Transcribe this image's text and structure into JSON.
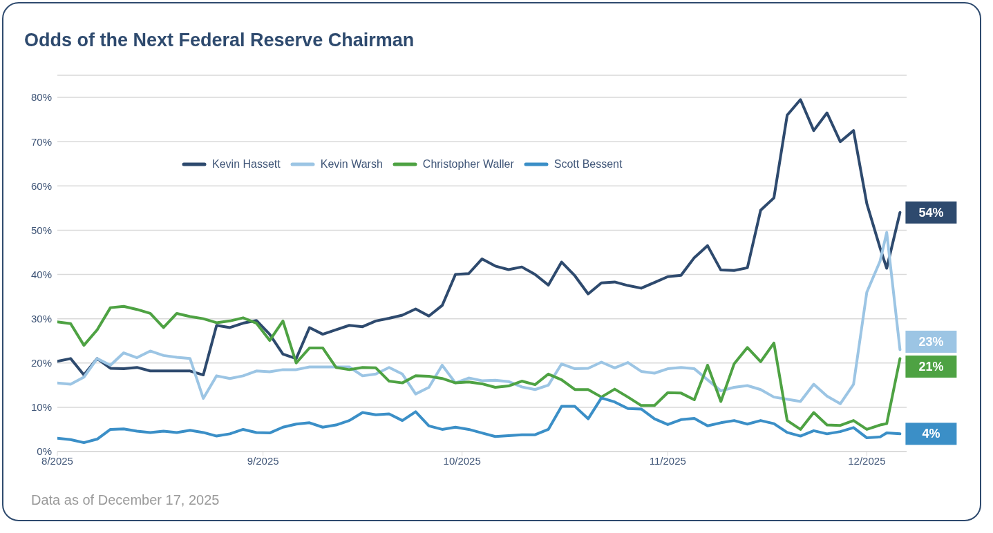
{
  "chart_data": {
    "type": "line",
    "title": "Odds of the Next Federal Reserve Chairman",
    "x": [
      "2025-08-01",
      "2025-08-03",
      "2025-08-05",
      "2025-08-07",
      "2025-08-09",
      "2025-08-11",
      "2025-08-13",
      "2025-08-15",
      "2025-08-17",
      "2025-08-19",
      "2025-08-21",
      "2025-08-23",
      "2025-08-25",
      "2025-08-27",
      "2025-08-29",
      "2025-08-31",
      "2025-09-02",
      "2025-09-04",
      "2025-09-06",
      "2025-09-08",
      "2025-09-10",
      "2025-09-12",
      "2025-09-14",
      "2025-09-16",
      "2025-09-18",
      "2025-09-20",
      "2025-09-22",
      "2025-09-24",
      "2025-09-26",
      "2025-09-28",
      "2025-09-30",
      "2025-10-02",
      "2025-10-04",
      "2025-10-06",
      "2025-10-08",
      "2025-10-10",
      "2025-10-12",
      "2025-10-14",
      "2025-10-16",
      "2025-10-18",
      "2025-10-20",
      "2025-10-22",
      "2025-10-24",
      "2025-10-26",
      "2025-10-28",
      "2025-10-30",
      "2025-11-01",
      "2025-11-03",
      "2025-11-05",
      "2025-11-07",
      "2025-11-09",
      "2025-11-11",
      "2025-11-13",
      "2025-11-15",
      "2025-11-17",
      "2025-11-19",
      "2025-11-21",
      "2025-11-23",
      "2025-11-25",
      "2025-11-27",
      "2025-11-29",
      "2025-12-01",
      "2025-12-03",
      "2025-12-04",
      "2025-12-06"
    ],
    "series": [
      {
        "name": "Kevin Hassett",
        "color": "#2e4a6e",
        "values": [
          20.4,
          21,
          17.3,
          21,
          18.8,
          18.7,
          19,
          18.2,
          18.2,
          18.2,
          18.2,
          17.3,
          28.5,
          28,
          29,
          29.6,
          26.5,
          22,
          21,
          28,
          26.5,
          27.5,
          28.5,
          28.2,
          29.5,
          30.1,
          30.8,
          32.2,
          30.6,
          33,
          40,
          40.2,
          43.5,
          41.9,
          41.1,
          41.7,
          40,
          37.6,
          42.8,
          39.7,
          35.6,
          38.1,
          38.3,
          37.5,
          36.9,
          38.2,
          39.5,
          39.8,
          43.8,
          46.5,
          41,
          40.9,
          41.5,
          54.5,
          57.3,
          76,
          79.5,
          72.5,
          76.5,
          70,
          72.5,
          56,
          46,
          41.4,
          54
        ],
        "value_labels": [
          null,
          null,
          null,
          null,
          null,
          null,
          null,
          null,
          null,
          null,
          null,
          null,
          null,
          null,
          null,
          null,
          null,
          null,
          null,
          null,
          null,
          null,
          null,
          null,
          null,
          null,
          null,
          null,
          null,
          null,
          null,
          null,
          null,
          null,
          null,
          null,
          null,
          null,
          null,
          null,
          null,
          null,
          null,
          null,
          null,
          null,
          null,
          null,
          null,
          null,
          null,
          null,
          null,
          null,
          null,
          null,
          null,
          null,
          null,
          null,
          null,
          null,
          null,
          null,
          "54%"
        ]
      },
      {
        "name": "Kevin Warsh",
        "color": "#9cc5e4",
        "values": [
          15.5,
          15.2,
          16.8,
          21,
          19.5,
          22.3,
          21.2,
          22.7,
          21.7,
          21.3,
          21,
          12,
          17.1,
          16.5,
          17.1,
          18.2,
          18,
          18.5,
          18.5,
          19.1,
          19.1,
          19.1,
          19.1,
          17.1,
          17.5,
          19,
          17.5,
          13,
          14.5,
          19.5,
          15.5,
          16.6,
          16,
          16.1,
          15.8,
          14.6,
          14,
          15,
          19.8,
          18.7,
          18.8,
          20.2,
          18.9,
          20.1,
          18.1,
          17.7,
          18.7,
          19,
          18.7,
          16.2,
          13.7,
          14.5,
          14.9,
          14,
          12.3,
          11.8,
          11.3,
          15.2,
          12.5,
          10.8,
          15.2,
          36,
          43,
          49.5,
          23
        ],
        "value_labels": [
          null,
          null,
          null,
          null,
          null,
          null,
          null,
          null,
          null,
          null,
          null,
          null,
          null,
          null,
          null,
          null,
          null,
          null,
          null,
          null,
          null,
          null,
          null,
          null,
          null,
          null,
          null,
          null,
          null,
          null,
          null,
          null,
          null,
          null,
          null,
          null,
          null,
          null,
          null,
          null,
          null,
          null,
          null,
          null,
          null,
          null,
          null,
          null,
          null,
          null,
          null,
          null,
          null,
          null,
          null,
          null,
          null,
          null,
          null,
          null,
          null,
          null,
          null,
          null,
          "23%"
        ]
      },
      {
        "name": "Christopher Waller",
        "color": "#4ea243",
        "values": [
          29.3,
          28.9,
          24,
          27.5,
          32.5,
          32.8,
          32.1,
          31.2,
          28,
          31.2,
          30.5,
          30,
          29.1,
          29.5,
          30.2,
          29,
          25.1,
          29.5,
          20,
          23.4,
          23.4,
          19,
          18.5,
          19,
          18.9,
          15.9,
          15.5,
          17.1,
          17,
          16.5,
          15.5,
          15.7,
          15.3,
          14.5,
          14.8,
          15.9,
          15.1,
          17.5,
          16.2,
          14,
          14,
          12.3,
          14.1,
          12.3,
          10.4,
          10.4,
          13.3,
          13.2,
          11.7,
          19.5,
          11.3,
          19.8,
          23.5,
          20.3,
          24.5,
          7,
          5,
          8.8,
          6,
          5.9,
          7,
          5,
          6,
          6.3,
          21
        ],
        "value_labels": [
          null,
          null,
          null,
          null,
          null,
          null,
          null,
          null,
          null,
          null,
          null,
          null,
          null,
          null,
          null,
          null,
          null,
          null,
          null,
          null,
          null,
          null,
          null,
          null,
          null,
          null,
          null,
          null,
          null,
          null,
          null,
          null,
          null,
          null,
          null,
          null,
          null,
          null,
          null,
          null,
          null,
          null,
          null,
          null,
          null,
          null,
          null,
          null,
          null,
          null,
          null,
          null,
          null,
          null,
          null,
          null,
          null,
          null,
          null,
          null,
          null,
          null,
          null,
          null,
          "21%"
        ]
      },
      {
        "name": "Scott Bessent",
        "color": "#3b8fc7",
        "values": [
          3,
          2.7,
          2,
          2.8,
          5,
          5.1,
          4.6,
          4.3,
          4.6,
          4.3,
          4.8,
          4.3,
          3.5,
          4,
          5,
          4.3,
          4.2,
          5.5,
          6.2,
          6.5,
          5.5,
          6,
          7,
          8.8,
          8.3,
          8.5,
          7,
          9,
          5.8,
          5,
          5.5,
          5,
          4.2,
          3.4,
          3.6,
          3.8,
          3.8,
          5,
          10.2,
          10.2,
          7.4,
          12.1,
          11.2,
          9.7,
          9.6,
          7.4,
          6.1,
          7.2,
          7.5,
          5.8,
          6.5,
          7,
          6.2,
          7,
          6.3,
          4.3,
          3.5,
          4.7,
          4,
          4.5,
          5.4,
          3.1,
          3.3,
          4.2,
          4
        ],
        "value_labels": [
          null,
          null,
          null,
          null,
          null,
          null,
          null,
          null,
          null,
          null,
          null,
          null,
          null,
          null,
          null,
          null,
          null,
          null,
          null,
          null,
          null,
          null,
          null,
          null,
          null,
          null,
          null,
          null,
          null,
          null,
          null,
          null,
          null,
          null,
          null,
          null,
          null,
          null,
          null,
          null,
          null,
          null,
          null,
          null,
          null,
          null,
          null,
          null,
          null,
          null,
          null,
          null,
          null,
          null,
          null,
          null,
          null,
          null,
          null,
          null,
          null,
          null,
          null,
          null,
          "4%"
        ]
      }
    ],
    "xlim": [
      "2025-08-01",
      "2025-12-07"
    ],
    "xticks": [
      {
        "value": "2025-08-01",
        "label": "8/2025"
      },
      {
        "value": "2025-09-01",
        "label": "9/2025"
      },
      {
        "value": "2025-10-01",
        "label": "10/2025"
      },
      {
        "value": "2025-11-01",
        "label": "11/2025"
      },
      {
        "value": "2025-12-01",
        "label": "12/2025"
      }
    ],
    "ylim": [
      0,
      85
    ],
    "yticks": [
      {
        "value": 0,
        "label": "0%"
      },
      {
        "value": 10,
        "label": "10%"
      },
      {
        "value": 20,
        "label": "20%"
      },
      {
        "value": 30,
        "label": "30%"
      },
      {
        "value": 40,
        "label": "40%"
      },
      {
        "value": 50,
        "label": "50%"
      },
      {
        "value": 60,
        "label": "60%"
      },
      {
        "value": 70,
        "label": "70%"
      },
      {
        "value": 80,
        "label": "80%"
      }
    ],
    "grid": "y",
    "legend": "top",
    "annotations": [
      "Data as of December 17, 2025"
    ]
  }
}
